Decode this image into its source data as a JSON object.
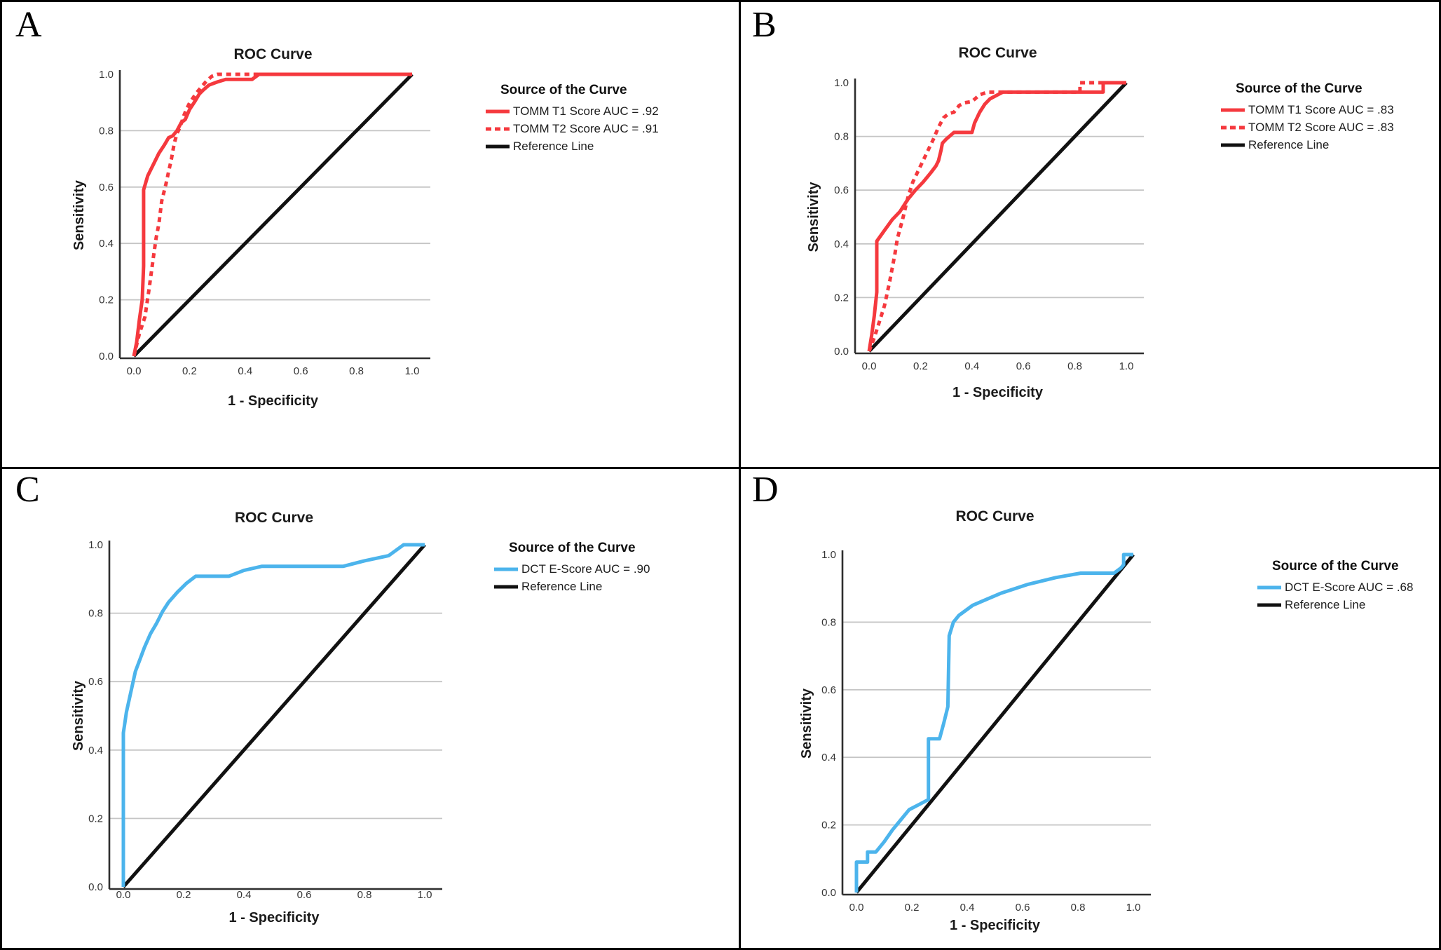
{
  "figure_name": "ROC curve panels",
  "chart_data": [
    {
      "type": "line",
      "panel_label": "A",
      "title": "ROC Curve",
      "xlabel": "1 - Specificity",
      "ylabel": "Sensitivity",
      "xlim": [
        0,
        1
      ],
      "ylim": [
        0,
        1
      ],
      "x_tick_labels": [
        "0.0",
        "0.2",
        "0.4",
        "0.6",
        "0.8",
        "1.0"
      ],
      "y_tick_labels": [
        "0.0",
        "0.2",
        "0.4",
        "0.6",
        "0.8",
        "1.0"
      ],
      "grid_y": [
        0.2,
        0.4,
        0.6,
        0.8
      ],
      "grid_color": "#c5c5c5",
      "legend_position": "right",
      "legend_title": "Source of the Curve",
      "series": [
        {
          "name": "TOMM T1 Score AUC = .92",
          "color": "#f5393e",
          "style": "solid",
          "role": "curve",
          "points": [
            [
              0,
              0
            ],
            [
              0.01,
              0.05
            ],
            [
              0.02,
              0.13
            ],
            [
              0.03,
              0.2
            ],
            [
              0.035,
              0.32
            ],
            [
              0.035,
              0.59
            ],
            [
              0.05,
              0.64
            ],
            [
              0.07,
              0.68
            ],
            [
              0.09,
              0.72
            ],
            [
              0.11,
              0.75
            ],
            [
              0.125,
              0.775
            ],
            [
              0.14,
              0.782
            ],
            [
              0.155,
              0.8
            ],
            [
              0.17,
              0.828
            ],
            [
              0.185,
              0.84
            ],
            [
              0.2,
              0.875
            ],
            [
              0.22,
              0.905
            ],
            [
              0.235,
              0.93
            ],
            [
              0.25,
              0.945
            ],
            [
              0.27,
              0.962
            ],
            [
              0.3,
              0.973
            ],
            [
              0.33,
              0.982
            ],
            [
              0.425,
              0.982
            ],
            [
              0.45,
              1
            ],
            [
              1,
              1
            ]
          ]
        },
        {
          "name": "TOMM T2 Score AUC = .91",
          "color": "#f5393e",
          "style": "dotted",
          "role": "curve",
          "points": [
            [
              0,
              0
            ],
            [
              0.02,
              0.08
            ],
            [
              0.04,
              0.14
            ],
            [
              0.055,
              0.24
            ],
            [
              0.07,
              0.35
            ],
            [
              0.08,
              0.42
            ],
            [
              0.09,
              0.47
            ],
            [
              0.1,
              0.55
            ],
            [
              0.115,
              0.61
            ],
            [
              0.125,
              0.655
            ],
            [
              0.135,
              0.7
            ],
            [
              0.145,
              0.755
            ],
            [
              0.155,
              0.79
            ],
            [
              0.16,
              0.8
            ],
            [
              0.17,
              0.825
            ],
            [
              0.18,
              0.855
            ],
            [
              0.19,
              0.878
            ],
            [
              0.2,
              0.898
            ],
            [
              0.215,
              0.92
            ],
            [
              0.23,
              0.94
            ],
            [
              0.245,
              0.958
            ],
            [
              0.26,
              0.975
            ],
            [
              0.28,
              0.993
            ],
            [
              0.3,
              1
            ],
            [
              1,
              1
            ]
          ]
        },
        {
          "name": "Reference Line",
          "color": "#111111",
          "style": "solid",
          "role": "reference",
          "points": [
            [
              0,
              0
            ],
            [
              1,
              1
            ]
          ]
        }
      ]
    },
    {
      "type": "line",
      "panel_label": "B",
      "title": "ROC Curve",
      "xlabel": "1 - Specificity",
      "ylabel": "Sensitivity",
      "xlim": [
        0,
        1
      ],
      "ylim": [
        0,
        1
      ],
      "x_tick_labels": [
        "0.0",
        "0.2",
        "0.4",
        "0.6",
        "0.8",
        "1.0"
      ],
      "y_tick_labels": [
        "0.0",
        "0.2",
        "0.4",
        "0.6",
        "0.8",
        "1.0"
      ],
      "grid_y": [
        0.2,
        0.4,
        0.6,
        0.8
      ],
      "grid_color": "#c5c5c5",
      "legend_position": "right",
      "legend_title": "Source of the Curve",
      "series": [
        {
          "name": "TOMM T1 Score AUC = .83",
          "color": "#f5393e",
          "style": "solid",
          "role": "curve",
          "points": [
            [
              0,
              0
            ],
            [
              0.01,
              0.06
            ],
            [
              0.02,
              0.13
            ],
            [
              0.03,
              0.22
            ],
            [
              0.03,
              0.41
            ],
            [
              0.06,
              0.45
            ],
            [
              0.09,
              0.49
            ],
            [
              0.12,
              0.52
            ],
            [
              0.15,
              0.565
            ],
            [
              0.18,
              0.6
            ],
            [
              0.21,
              0.63
            ],
            [
              0.24,
              0.665
            ],
            [
              0.26,
              0.69
            ],
            [
              0.27,
              0.71
            ],
            [
              0.28,
              0.75
            ],
            [
              0.285,
              0.775
            ],
            [
              0.3,
              0.79
            ],
            [
              0.33,
              0.815
            ],
            [
              0.4,
              0.815
            ],
            [
              0.41,
              0.85
            ],
            [
              0.43,
              0.89
            ],
            [
              0.45,
              0.92
            ],
            [
              0.47,
              0.94
            ],
            [
              0.5,
              0.955
            ],
            [
              0.52,
              0.965
            ],
            [
              0.91,
              0.965
            ],
            [
              0.91,
              1
            ],
            [
              1,
              1
            ]
          ]
        },
        {
          "name": "TOMM T2 Score AUC = .83",
          "color": "#f5393e",
          "style": "dotted",
          "role": "curve",
          "points": [
            [
              0,
              0
            ],
            [
              0.02,
              0.05
            ],
            [
              0.04,
              0.11
            ],
            [
              0.06,
              0.17
            ],
            [
              0.08,
              0.26
            ],
            [
              0.1,
              0.36
            ],
            [
              0.11,
              0.42
            ],
            [
              0.13,
              0.49
            ],
            [
              0.15,
              0.57
            ],
            [
              0.17,
              0.63
            ],
            [
              0.19,
              0.67
            ],
            [
              0.21,
              0.71
            ],
            [
              0.23,
              0.75
            ],
            [
              0.25,
              0.79
            ],
            [
              0.27,
              0.835
            ],
            [
              0.29,
              0.87
            ],
            [
              0.31,
              0.885
            ],
            [
              0.33,
              0.89
            ],
            [
              0.35,
              0.915
            ],
            [
              0.37,
              0.925
            ],
            [
              0.4,
              0.93
            ],
            [
              0.43,
              0.955
            ],
            [
              0.46,
              0.965
            ],
            [
              0.82,
              0.965
            ],
            [
              0.82,
              1
            ],
            [
              1,
              1
            ]
          ]
        },
        {
          "name": "Reference Line",
          "color": "#111111",
          "style": "solid",
          "role": "reference",
          "points": [
            [
              0,
              0
            ],
            [
              1,
              1
            ]
          ]
        }
      ]
    },
    {
      "type": "line",
      "panel_label": "C",
      "title": "ROC Curve",
      "xlabel": "1 - Specificity",
      "ylabel": "Sensitivity",
      "xlim": [
        0,
        1
      ],
      "ylim": [
        0,
        1
      ],
      "x_tick_labels": [
        "0.0",
        "0.2",
        "0.4",
        "0.6",
        "0.8",
        "1.0"
      ],
      "y_tick_labels": [
        "0.0",
        "0.2",
        "0.4",
        "0.6",
        "0.8",
        "1.0"
      ],
      "grid_y": [
        0.2,
        0.4,
        0.6,
        0.8
      ],
      "grid_color": "#c5c5c5",
      "legend_position": "right",
      "legend_title": "Source of the Curve",
      "series": [
        {
          "name": "DCT E-Score AUC = .90",
          "color": "#4cb4ec",
          "style": "solid",
          "role": "curve",
          "points": [
            [
              0,
              0
            ],
            [
              0,
              0.45
            ],
            [
              0.005,
              0.48
            ],
            [
              0.01,
              0.51
            ],
            [
              0.02,
              0.55
            ],
            [
              0.03,
              0.59
            ],
            [
              0.04,
              0.63
            ],
            [
              0.055,
              0.665
            ],
            [
              0.07,
              0.7
            ],
            [
              0.09,
              0.74
            ],
            [
              0.11,
              0.77
            ],
            [
              0.13,
              0.805
            ],
            [
              0.15,
              0.832
            ],
            [
              0.18,
              0.862
            ],
            [
              0.21,
              0.888
            ],
            [
              0.24,
              0.908
            ],
            [
              0.35,
              0.908
            ],
            [
              0.4,
              0.925
            ],
            [
              0.46,
              0.937
            ],
            [
              0.73,
              0.937
            ],
            [
              0.8,
              0.953
            ],
            [
              0.88,
              0.968
            ],
            [
              0.93,
              1
            ],
            [
              1,
              1
            ]
          ]
        },
        {
          "name": "Reference Line",
          "color": "#111111",
          "style": "solid",
          "role": "reference",
          "points": [
            [
              0,
              0
            ],
            [
              1,
              1
            ]
          ]
        }
      ]
    },
    {
      "type": "line",
      "panel_label": "D",
      "title": "ROC Curve",
      "xlabel": "1 - Specificity",
      "ylabel": "Sensitivity",
      "xlim": [
        0,
        1
      ],
      "ylim": [
        0,
        1
      ],
      "x_tick_labels": [
        "0.0",
        "0.2",
        "0.4",
        "0.6",
        "0.8",
        "1.0"
      ],
      "y_tick_labels": [
        "0.0",
        "0.2",
        "0.4",
        "0.6",
        "0.8",
        "1.0"
      ],
      "grid_y": [
        0.2,
        0.4,
        0.6,
        0.8
      ],
      "grid_color": "#c5c5c5",
      "legend_position": "right",
      "legend_title": "Source of the Curve",
      "series": [
        {
          "name": "DCT E-Score AUC = .68",
          "color": "#4cb4ec",
          "style": "solid",
          "role": "curve",
          "points": [
            [
              0,
              0
            ],
            [
              0,
              0.09
            ],
            [
              0.04,
              0.09
            ],
            [
              0.04,
              0.12
            ],
            [
              0.07,
              0.12
            ],
            [
              0.1,
              0.15
            ],
            [
              0.13,
              0.185
            ],
            [
              0.16,
              0.215
            ],
            [
              0.19,
              0.245
            ],
            [
              0.23,
              0.262
            ],
            [
              0.26,
              0.275
            ],
            [
              0.26,
              0.455
            ],
            [
              0.3,
              0.455
            ],
            [
              0.315,
              0.5
            ],
            [
              0.33,
              0.55
            ],
            [
              0.335,
              0.76
            ],
            [
              0.35,
              0.8
            ],
            [
              0.37,
              0.82
            ],
            [
              0.42,
              0.85
            ],
            [
              0.52,
              0.885
            ],
            [
              0.62,
              0.912
            ],
            [
              0.72,
              0.932
            ],
            [
              0.81,
              0.945
            ],
            [
              0.93,
              0.945
            ],
            [
              0.955,
              0.96
            ],
            [
              0.965,
              0.97
            ],
            [
              0.965,
              1
            ],
            [
              1,
              1
            ]
          ]
        },
        {
          "name": "Reference Line",
          "color": "#111111",
          "style": "solid",
          "role": "reference",
          "points": [
            [
              0,
              0
            ],
            [
              1,
              1
            ]
          ]
        }
      ]
    }
  ]
}
